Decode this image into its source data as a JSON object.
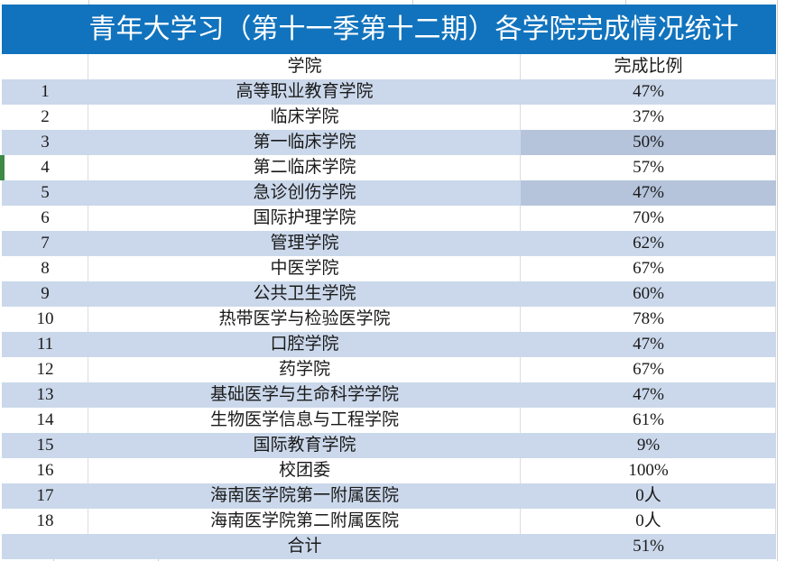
{
  "title": "青年大学习（第十一季第十二期）各学院完成情况统计",
  "table": {
    "columns": {
      "college": "学院",
      "ratio": "完成比例"
    },
    "rows": [
      {
        "n": "1",
        "college": "高等职业教育学院",
        "value": "47%"
      },
      {
        "n": "2",
        "college": "临床学院",
        "value": "37%"
      },
      {
        "n": "3",
        "college": "第一临床学院",
        "value": "50%"
      },
      {
        "n": "4",
        "college": "第二临床学院",
        "value": "57%"
      },
      {
        "n": "5",
        "college": "急诊创伤学院",
        "value": "47%"
      },
      {
        "n": "6",
        "college": "国际护理学院",
        "value": "70%"
      },
      {
        "n": "7",
        "college": "管理学院",
        "value": "62%"
      },
      {
        "n": "8",
        "college": "中医学院",
        "value": "67%"
      },
      {
        "n": "9",
        "college": "公共卫生学院",
        "value": "60%"
      },
      {
        "n": "10",
        "college": "热带医学与检验医学院",
        "value": "78%"
      },
      {
        "n": "11",
        "college": "口腔学院",
        "value": "47%"
      },
      {
        "n": "12",
        "college": "药学院",
        "value": "67%"
      },
      {
        "n": "13",
        "college": "基础医学与生命科学学院",
        "value": "47%"
      },
      {
        "n": "14",
        "college": "生物医学信息与工程学院",
        "value": "61%"
      },
      {
        "n": "15",
        "college": "国际教育学院",
        "value": "9%"
      },
      {
        "n": "16",
        "college": "校团委",
        "value": "100%"
      },
      {
        "n": "17",
        "college": "海南医学院第一附属医院",
        "value": "0人"
      },
      {
        "n": "18",
        "college": "海南医学院第二附属医院",
        "value": "0人"
      }
    ],
    "total": {
      "label": "合计",
      "value": "51%"
    },
    "highlighted_value_rows": [
      "3",
      "5"
    ],
    "green_marker_row": "4"
  },
  "colors": {
    "title_bar": "#1173bd",
    "stripe": "#cbd8eb",
    "highlight": "#b5c4db",
    "marker_green": "#3c8a46",
    "title_text": "#ffffff",
    "body_text": "#1a1a1a"
  }
}
